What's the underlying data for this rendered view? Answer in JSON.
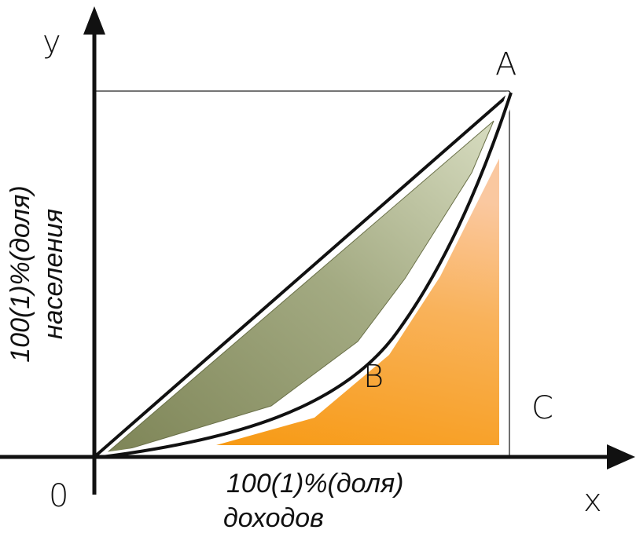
{
  "labels": {
    "y_axis": "y",
    "x_axis": "x",
    "origin": "0",
    "point_a": "A",
    "point_b": "B",
    "point_c": "C"
  },
  "y_axis_caption": {
    "line1": "100(1)%(доля)",
    "line2": "населения"
  },
  "x_axis_caption": {
    "line1": "100(1)%(доля)",
    "line2": "доходов"
  },
  "colors": {
    "gap_area": "#8e9468",
    "lower_area": "#f7a02a",
    "axis": "#111111"
  }
}
